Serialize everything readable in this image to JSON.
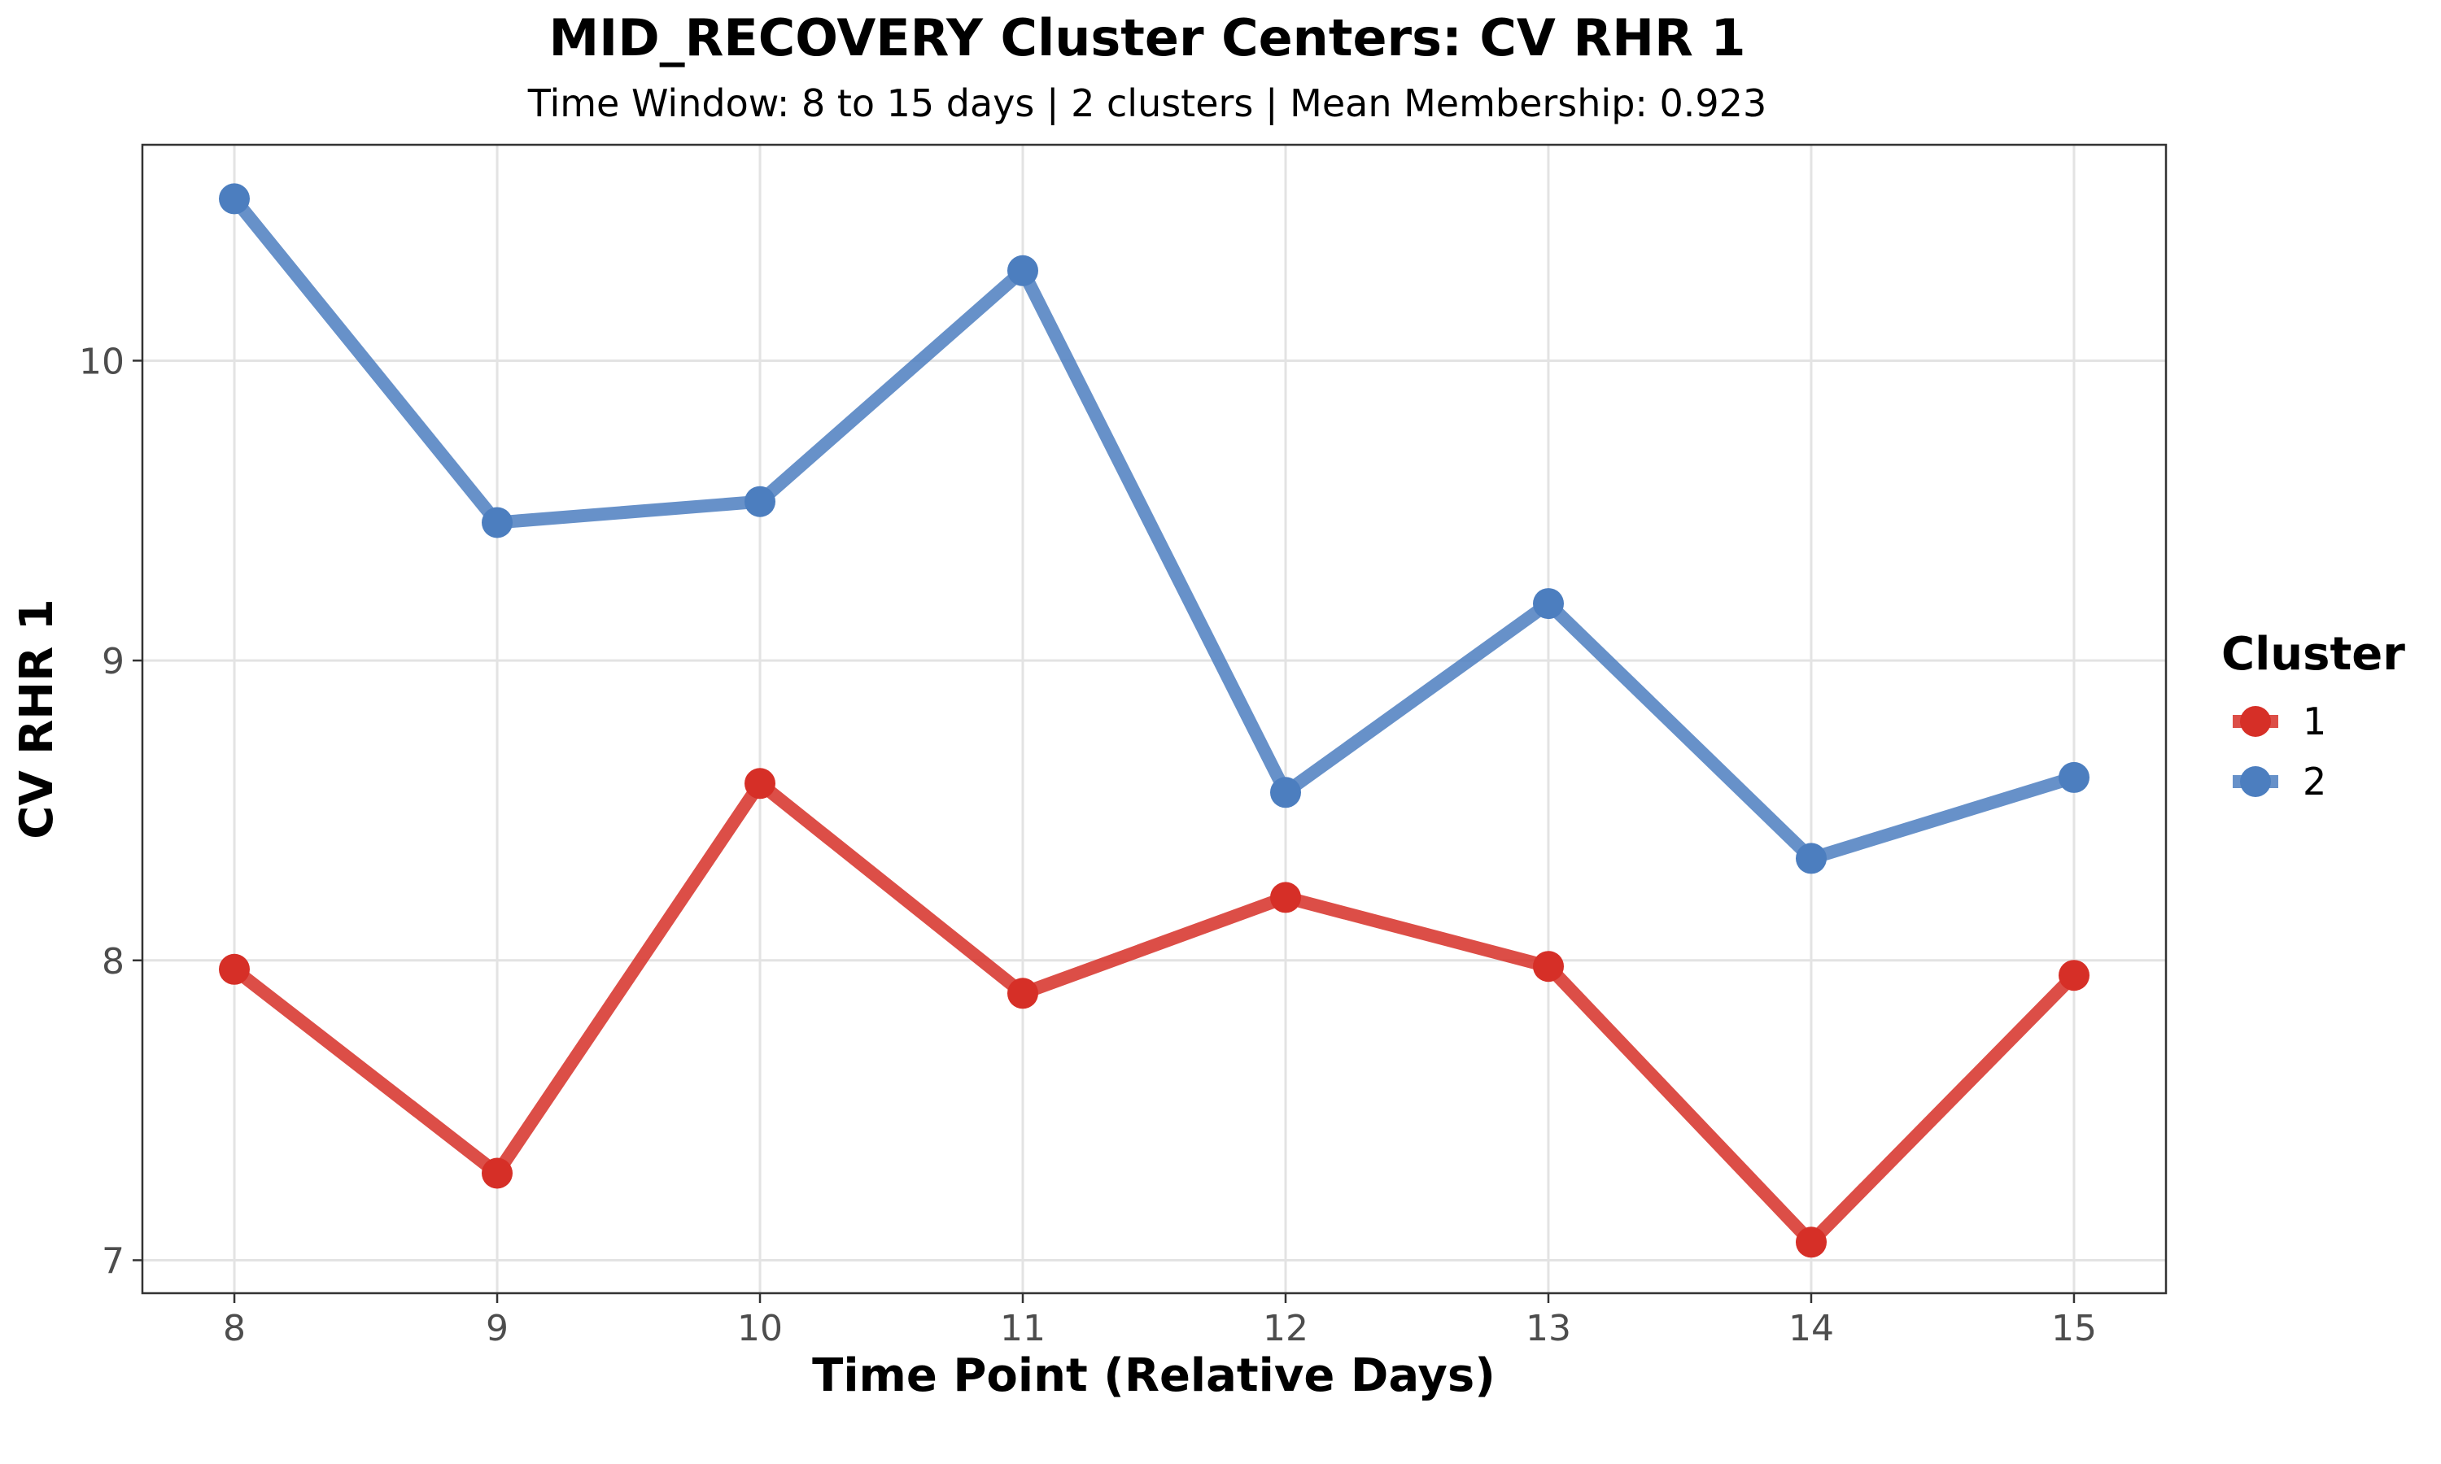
{
  "chart_data": {
    "type": "line",
    "title": "MID_RECOVERY Cluster Centers: CV RHR 1",
    "subtitle": "Time Window: 8 to 15 days | 2 clusters | Mean Membership: 0.923",
    "xlabel": "Time Point (Relative Days)",
    "ylabel": "CV RHR 1",
    "x": [
      8,
      9,
      10,
      11,
      12,
      13,
      14,
      15
    ],
    "xlim": [
      7.65,
      15.35
    ],
    "ylim": [
      6.89,
      10.72
    ],
    "xticks": [
      8,
      9,
      10,
      11,
      12,
      13,
      14,
      15
    ],
    "yticks": [
      7,
      8,
      9,
      10
    ],
    "grid": true,
    "legend": {
      "title": "Cluster",
      "placement": "right"
    },
    "series": [
      {
        "name": "1",
        "color": "#d62f27",
        "values": [
          7.97,
          7.29,
          8.59,
          7.89,
          8.21,
          7.98,
          7.06,
          7.95
        ]
      },
      {
        "name": "2",
        "color": "#4c7ebf",
        "values": [
          10.54,
          9.46,
          9.53,
          10.3,
          8.56,
          9.19,
          8.34,
          8.61
        ]
      }
    ]
  }
}
